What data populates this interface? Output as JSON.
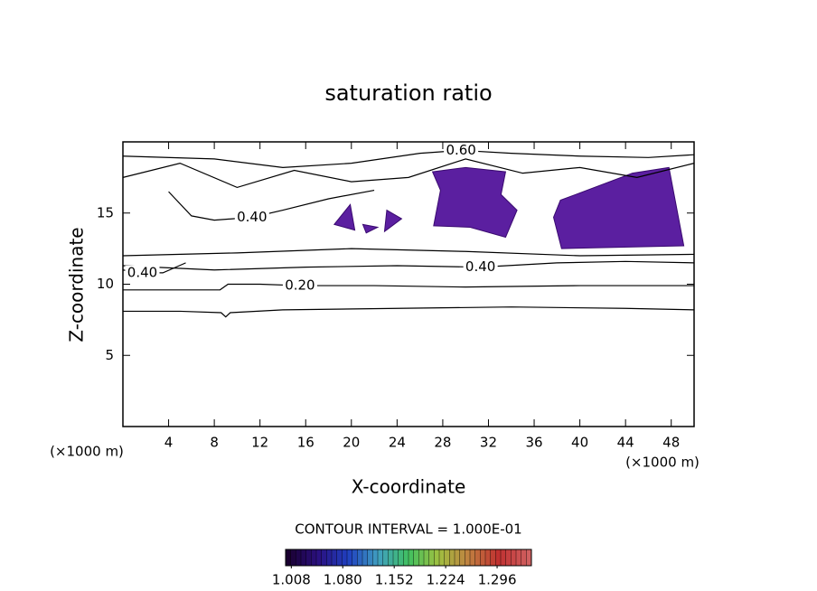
{
  "chart_data": {
    "type": "contour",
    "title": "saturation ratio",
    "x_label": "X-coordinate",
    "y_label": "Z-coordinate",
    "y_unit_label": "(×1000 m)",
    "x_unit_label": "(×1000 m)",
    "xlim": [
      0,
      50
    ],
    "ylim": [
      0,
      20
    ],
    "xticks": [
      4,
      8,
      12,
      16,
      20,
      24,
      28,
      32,
      36,
      40,
      44,
      48
    ],
    "yticks": [
      5,
      10,
      15
    ],
    "line_color": "#000000",
    "contours": [
      {
        "level": 0.1,
        "x": [
          0,
          5,
          8.6,
          9,
          9.4,
          14,
          24,
          34,
          44,
          50
        ],
        "y": [
          8.1,
          8.1,
          8.0,
          7.7,
          8.0,
          8.2,
          8.3,
          8.4,
          8.3,
          8.2
        ]
      },
      {
        "level": 0.2,
        "label": "0.20",
        "x": [
          0,
          5,
          8.5,
          9.2,
          12,
          15.5,
          22,
          30,
          40,
          50
        ],
        "y": [
          9.6,
          9.6,
          9.6,
          10.0,
          10.0,
          9.9,
          9.9,
          9.8,
          9.9,
          9.9
        ]
      },
      {
        "level": 0.3,
        "x": [
          0,
          10,
          20,
          30,
          40,
          50
        ],
        "y": [
          12.0,
          12.2,
          12.5,
          12.3,
          12.0,
          12.1
        ]
      },
      {
        "level": 0.4,
        "label": "0.40",
        "x": [
          0,
          8,
          16,
          24,
          31.3,
          38,
          44,
          50
        ],
        "y": [
          11.3,
          11.0,
          11.2,
          11.3,
          11.2,
          11.5,
          11.6,
          11.5
        ]
      },
      {
        "level": 0.4,
        "label": "0.40",
        "x": [
          0,
          0.8,
          1.7,
          3.5,
          5.5
        ],
        "y": [
          11.0,
          10.9,
          10.8,
          10.8,
          11.5
        ]
      },
      {
        "level": 0.4,
        "label": "0.40",
        "x": [
          4,
          6,
          8,
          11.3,
          14,
          18,
          22
        ],
        "y": [
          16.5,
          14.8,
          14.5,
          14.7,
          15.2,
          16.0,
          16.6
        ]
      },
      {
        "level": 0.5,
        "x": [
          0,
          5,
          10,
          15,
          20,
          25,
          30,
          35,
          40,
          45,
          50
        ],
        "y": [
          17.5,
          18.5,
          16.8,
          18.0,
          17.2,
          17.5,
          18.8,
          17.8,
          18.2,
          17.5,
          18.5
        ]
      },
      {
        "level": 0.6,
        "label": "0.60",
        "x": [
          0,
          8,
          14,
          20,
          26,
          29.6,
          34,
          40,
          46,
          50
        ],
        "y": [
          19.0,
          18.8,
          18.2,
          18.5,
          19.2,
          19.4,
          19.2,
          19.0,
          18.9,
          19.1
        ]
      }
    ],
    "regions": [
      {
        "color": "#5b1fa0",
        "x": [
          37.7,
          38.3,
          44.6,
          47.8,
          49.1,
          38.4
        ],
        "y": [
          14.7,
          15.9,
          17.8,
          18.2,
          12.7,
          12.5
        ]
      },
      {
        "color": "#5b1fa0",
        "x": [
          27.1,
          30.0,
          33.5,
          33.1,
          34.5,
          33.5,
          30.4,
          27.2,
          27.8
        ],
        "y": [
          17.9,
          18.2,
          17.9,
          16.3,
          15.2,
          13.3,
          14.0,
          14.1,
          16.6
        ]
      },
      {
        "color": "#5b1fa0",
        "x": [
          18.5,
          19.9,
          20.3
        ],
        "y": [
          14.2,
          15.6,
          13.8
        ]
      },
      {
        "color": "#5b1fa0",
        "x": [
          23.1,
          24.4,
          22.9
        ],
        "y": [
          15.2,
          14.6,
          13.7
        ]
      },
      {
        "color": "#5b1fa0",
        "x": [
          21.0,
          22.3,
          21.3
        ],
        "y": [
          14.2,
          14.0,
          13.6
        ]
      }
    ],
    "contour_interval": "CONTOUR INTERVAL = 1.000E-01",
    "colorbar": {
      "lim": [
        1.0,
        1.344
      ],
      "colors": [
        "#1a0030",
        "#2a1080",
        "#2040c0",
        "#40a0c0",
        "#40c060",
        "#a0c040",
        "#c08040",
        "#c03030",
        "#d06060"
      ],
      "ticks": [
        1.008,
        {
          "value": 1.08,
          "label": "1.080"
        },
        1.152,
        1.224,
        1.296
      ]
    }
  }
}
